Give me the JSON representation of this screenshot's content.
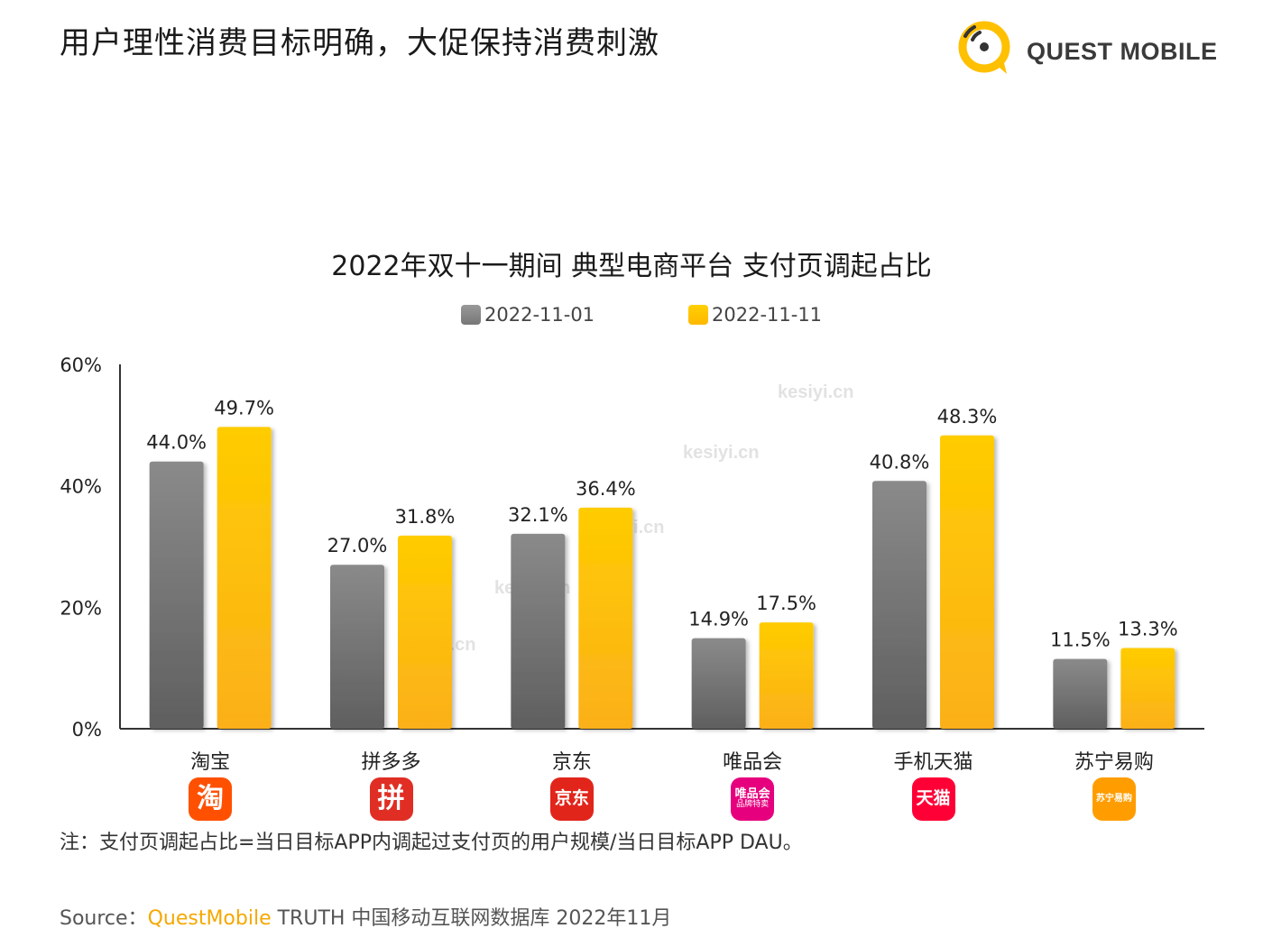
{
  "header": {
    "page_title": "用户理性消费目标明确，大促保持消费刺激",
    "logo_text": "QUEST MOBILE"
  },
  "watermark_text": "kesiyi.cn",
  "chart_data": {
    "type": "bar",
    "title": "2022年双十一期间 典型电商平台 支付页调起占比",
    "categories": [
      "淘宝",
      "拼多多",
      "京东",
      "唯品会",
      "手机天猫",
      "苏宁易购"
    ],
    "series": [
      {
        "name": "2022-11-01",
        "values": [
          44.0,
          27.0,
          32.1,
          14.9,
          40.8,
          11.5
        ],
        "labels": [
          "44.0%",
          "27.0%",
          "32.1%",
          "14.9%",
          "40.8%",
          "11.5%"
        ],
        "color": "#8c8c8c"
      },
      {
        "name": "2022-11-11",
        "values": [
          49.7,
          31.8,
          36.4,
          17.5,
          48.3,
          13.3
        ],
        "labels": [
          "49.7%",
          "31.8%",
          "36.4%",
          "17.5%",
          "48.3%",
          "13.3%"
        ],
        "color": "#ffc000"
      }
    ],
    "y_ticks": [
      0,
      20,
      40,
      60
    ],
    "y_tick_labels": [
      "0%",
      "20%",
      "40%",
      "60%"
    ],
    "ylim": [
      0,
      60
    ],
    "legend_position": "top-center",
    "grid": false
  },
  "app_icons": [
    {
      "name": "taobao-app-icon",
      "text": "淘",
      "color": "#ff5000"
    },
    {
      "name": "pinduoduo-app-icon",
      "text": "拼",
      "color": "#e02e24"
    },
    {
      "name": "jd-app-icon",
      "text": "京东",
      "color": "#e1251b"
    },
    {
      "name": "vipshop-app-icon",
      "text": "唯品会",
      "subtext": "品牌特卖",
      "color": "#e6007e"
    },
    {
      "name": "tmall-app-icon",
      "text": "天猫",
      "color": "#ff0036"
    },
    {
      "name": "suning-app-icon",
      "text": "苏宁易购",
      "color": "#ff9d00"
    }
  ],
  "footer": {
    "note": "注：支付页调起占比=当日目标APP内调起过支付页的用户规模/当日目标APP DAU。",
    "source_prefix": "Source：",
    "source_brand": "QuestMobile",
    "source_rest": " TRUTH 中国移动互联网数据库 2022年11月"
  }
}
